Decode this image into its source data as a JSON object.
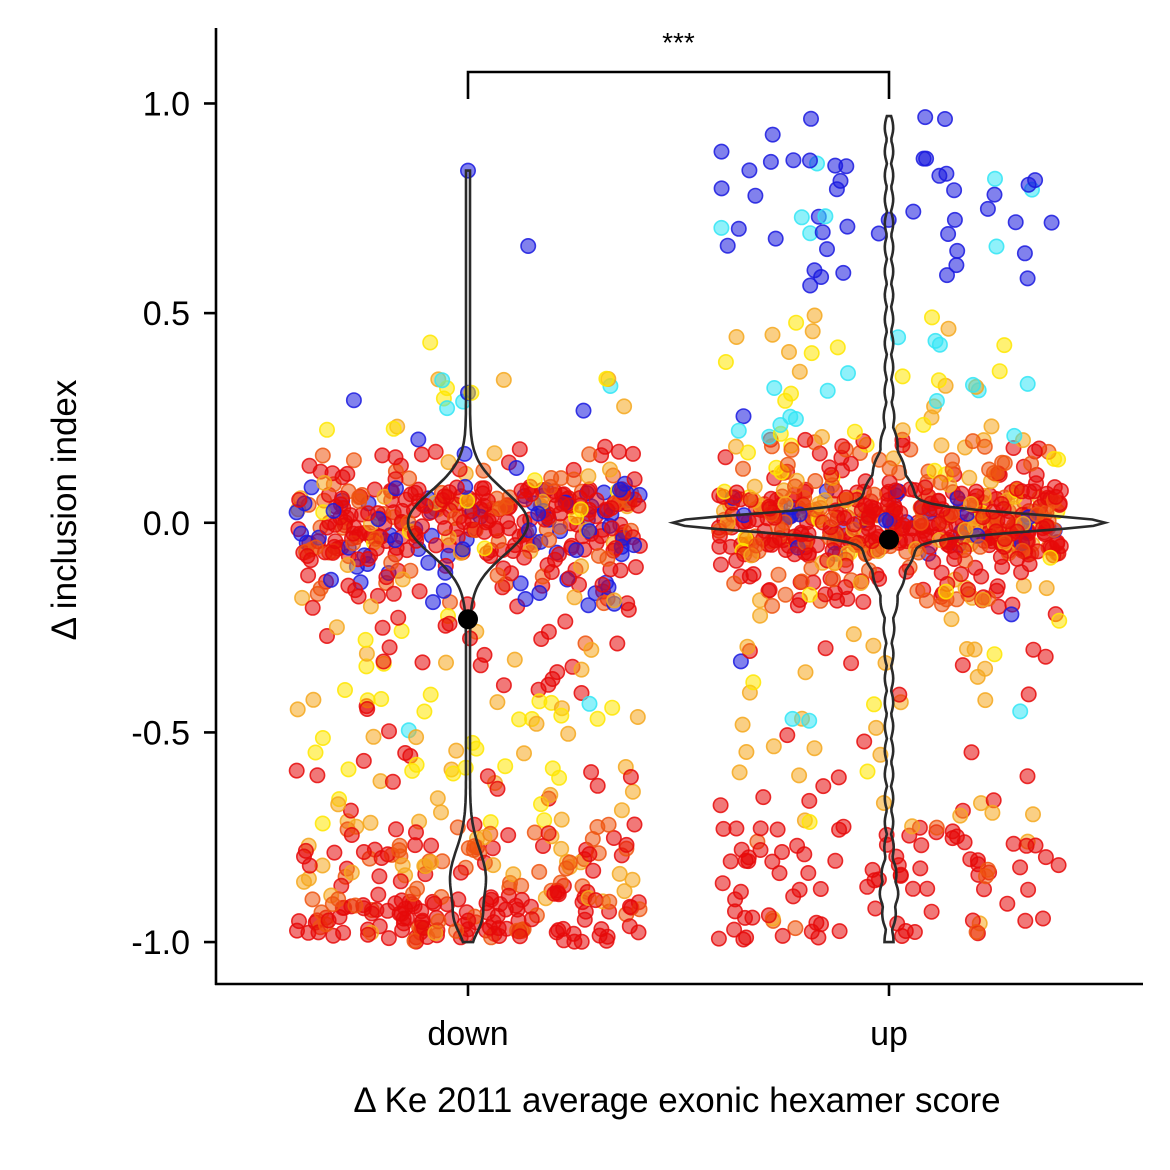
{
  "chart_data": {
    "type": "scatter",
    "subtype": "jittered strip plot with violin overlay",
    "xlabel": "Δ Ke 2011 average exonic hexamer score",
    "ylabel": "Δ inclusion index",
    "categories": [
      "down",
      "up"
    ],
    "ylim": [
      -1.1,
      1.18
    ],
    "yticks": [
      "-1.0",
      "-0.5",
      "0.0",
      "0.5",
      "1.0"
    ],
    "grid": false,
    "legend": "none",
    "significance": {
      "between": [
        "down",
        "up"
      ],
      "label": "***"
    },
    "medians": {
      "down": -0.23,
      "up": -0.04
    },
    "colors": {
      "blue": "#1a1adf",
      "cyan": "#33e5f5",
      "yellow": "#ffe600",
      "orange": "#f5a81f",
      "red_orange": "#ee5511",
      "red": "#e60a0a",
      "violin": "#2a2a2a",
      "median": "#000000"
    },
    "series": [
      {
        "category": "down",
        "bands": [
          {
            "y": [
              -0.08,
              0.08
            ],
            "count": 300,
            "colors": {
              "red": 0.6,
              "red_orange": 0.12,
              "blue": 0.2,
              "orange": 0.05,
              "yellow": 0.03
            }
          },
          {
            "y": [
              0.08,
              0.2
            ],
            "count": 50,
            "colors": {
              "red": 0.35,
              "red_orange": 0.35,
              "blue": 0.15,
              "orange": 0.1,
              "yellow": 0.05
            }
          },
          {
            "y": [
              0.2,
              0.35
            ],
            "count": 15,
            "colors": {
              "orange": 0.4,
              "yellow": 0.25,
              "blue": 0.2,
              "cyan": 0.15
            }
          },
          {
            "y": [
              -0.2,
              -0.08
            ],
            "count": 70,
            "colors": {
              "red": 0.5,
              "red_orange": 0.15,
              "blue": 0.25,
              "orange": 0.1
            }
          },
          {
            "y": [
              -0.35,
              -0.2
            ],
            "count": 30,
            "colors": {
              "red": 0.55,
              "orange": 0.2,
              "yellow": 0.1,
              "red_orange": 0.15
            }
          },
          {
            "y": [
              -0.45,
              -0.35
            ],
            "count": 10,
            "colors": {
              "red": 0.4,
              "orange": 0.3,
              "yellow": 0.2,
              "cyan": 0.1
            }
          },
          {
            "y": [
              -0.55,
              -0.42
            ],
            "count": 30,
            "colors": {
              "yellow": 0.35,
              "orange": 0.35,
              "cyan": 0.1,
              "red": 0.2
            }
          },
          {
            "y": [
              -0.72,
              -0.55
            ],
            "count": 40,
            "colors": {
              "orange": 0.55,
              "yellow": 0.2,
              "red": 0.25
            }
          },
          {
            "y": [
              -0.88,
              -0.72
            ],
            "count": 90,
            "colors": {
              "red": 0.4,
              "red_orange": 0.35,
              "orange": 0.25
            }
          },
          {
            "y": [
              -1.0,
              -0.88
            ],
            "count": 140,
            "colors": {
              "red": 0.8,
              "red_orange": 0.15,
              "orange": 0.05
            }
          }
        ],
        "outliers": [
          {
            "x": 0.0,
            "y": 0.84,
            "color": "blue"
          },
          {
            "x": 0.35,
            "y": 0.66,
            "color": "blue"
          },
          {
            "x": -0.22,
            "y": 0.43,
            "color": "yellow"
          },
          {
            "x": -0.15,
            "y": 0.34,
            "color": "cyan"
          },
          {
            "x": 0.0,
            "y": 0.31,
            "color": "blue"
          },
          {
            "x": 0.02,
            "y": 0.31,
            "color": "yellow"
          }
        ]
      },
      {
        "category": "up",
        "bands": [
          {
            "y": [
              -0.08,
              0.08
            ],
            "count": 420,
            "colors": {
              "red": 0.65,
              "red_orange": 0.15,
              "orange": 0.1,
              "blue": 0.07,
              "yellow": 0.03
            }
          },
          {
            "y": [
              0.08,
              0.2
            ],
            "count": 80,
            "colors": {
              "red": 0.4,
              "red_orange": 0.35,
              "orange": 0.2,
              "yellow": 0.05
            }
          },
          {
            "y": [
              0.2,
              0.5
            ],
            "count": 45,
            "colors": {
              "orange": 0.35,
              "yellow": 0.3,
              "cyan": 0.2,
              "blue": 0.15
            }
          },
          {
            "y": [
              -0.2,
              -0.08
            ],
            "count": 80,
            "colors": {
              "red": 0.6,
              "red_orange": 0.2,
              "orange": 0.15,
              "yellow": 0.05
            }
          },
          {
            "y": [
              -0.35,
              -0.2
            ],
            "count": 20,
            "colors": {
              "red": 0.5,
              "orange": 0.3,
              "blue": 0.1,
              "yellow": 0.1
            }
          },
          {
            "y": [
              -0.5,
              -0.35
            ],
            "count": 15,
            "colors": {
              "orange": 0.3,
              "yellow": 0.3,
              "cyan": 0.25,
              "red": 0.15
            }
          },
          {
            "y": [
              -0.72,
              -0.5
            ],
            "count": 25,
            "colors": {
              "orange": 0.5,
              "red": 0.35,
              "yellow": 0.15
            }
          },
          {
            "y": [
              -1.0,
              -0.72
            ],
            "count": 95,
            "colors": {
              "red": 0.85,
              "red_orange": 0.1,
              "orange": 0.05
            }
          },
          {
            "y": [
              0.55,
              0.97
            ],
            "count": 55,
            "colors": {
              "blue": 0.93,
              "cyan": 0.07
            }
          }
        ],
        "outliers": []
      }
    ]
  }
}
